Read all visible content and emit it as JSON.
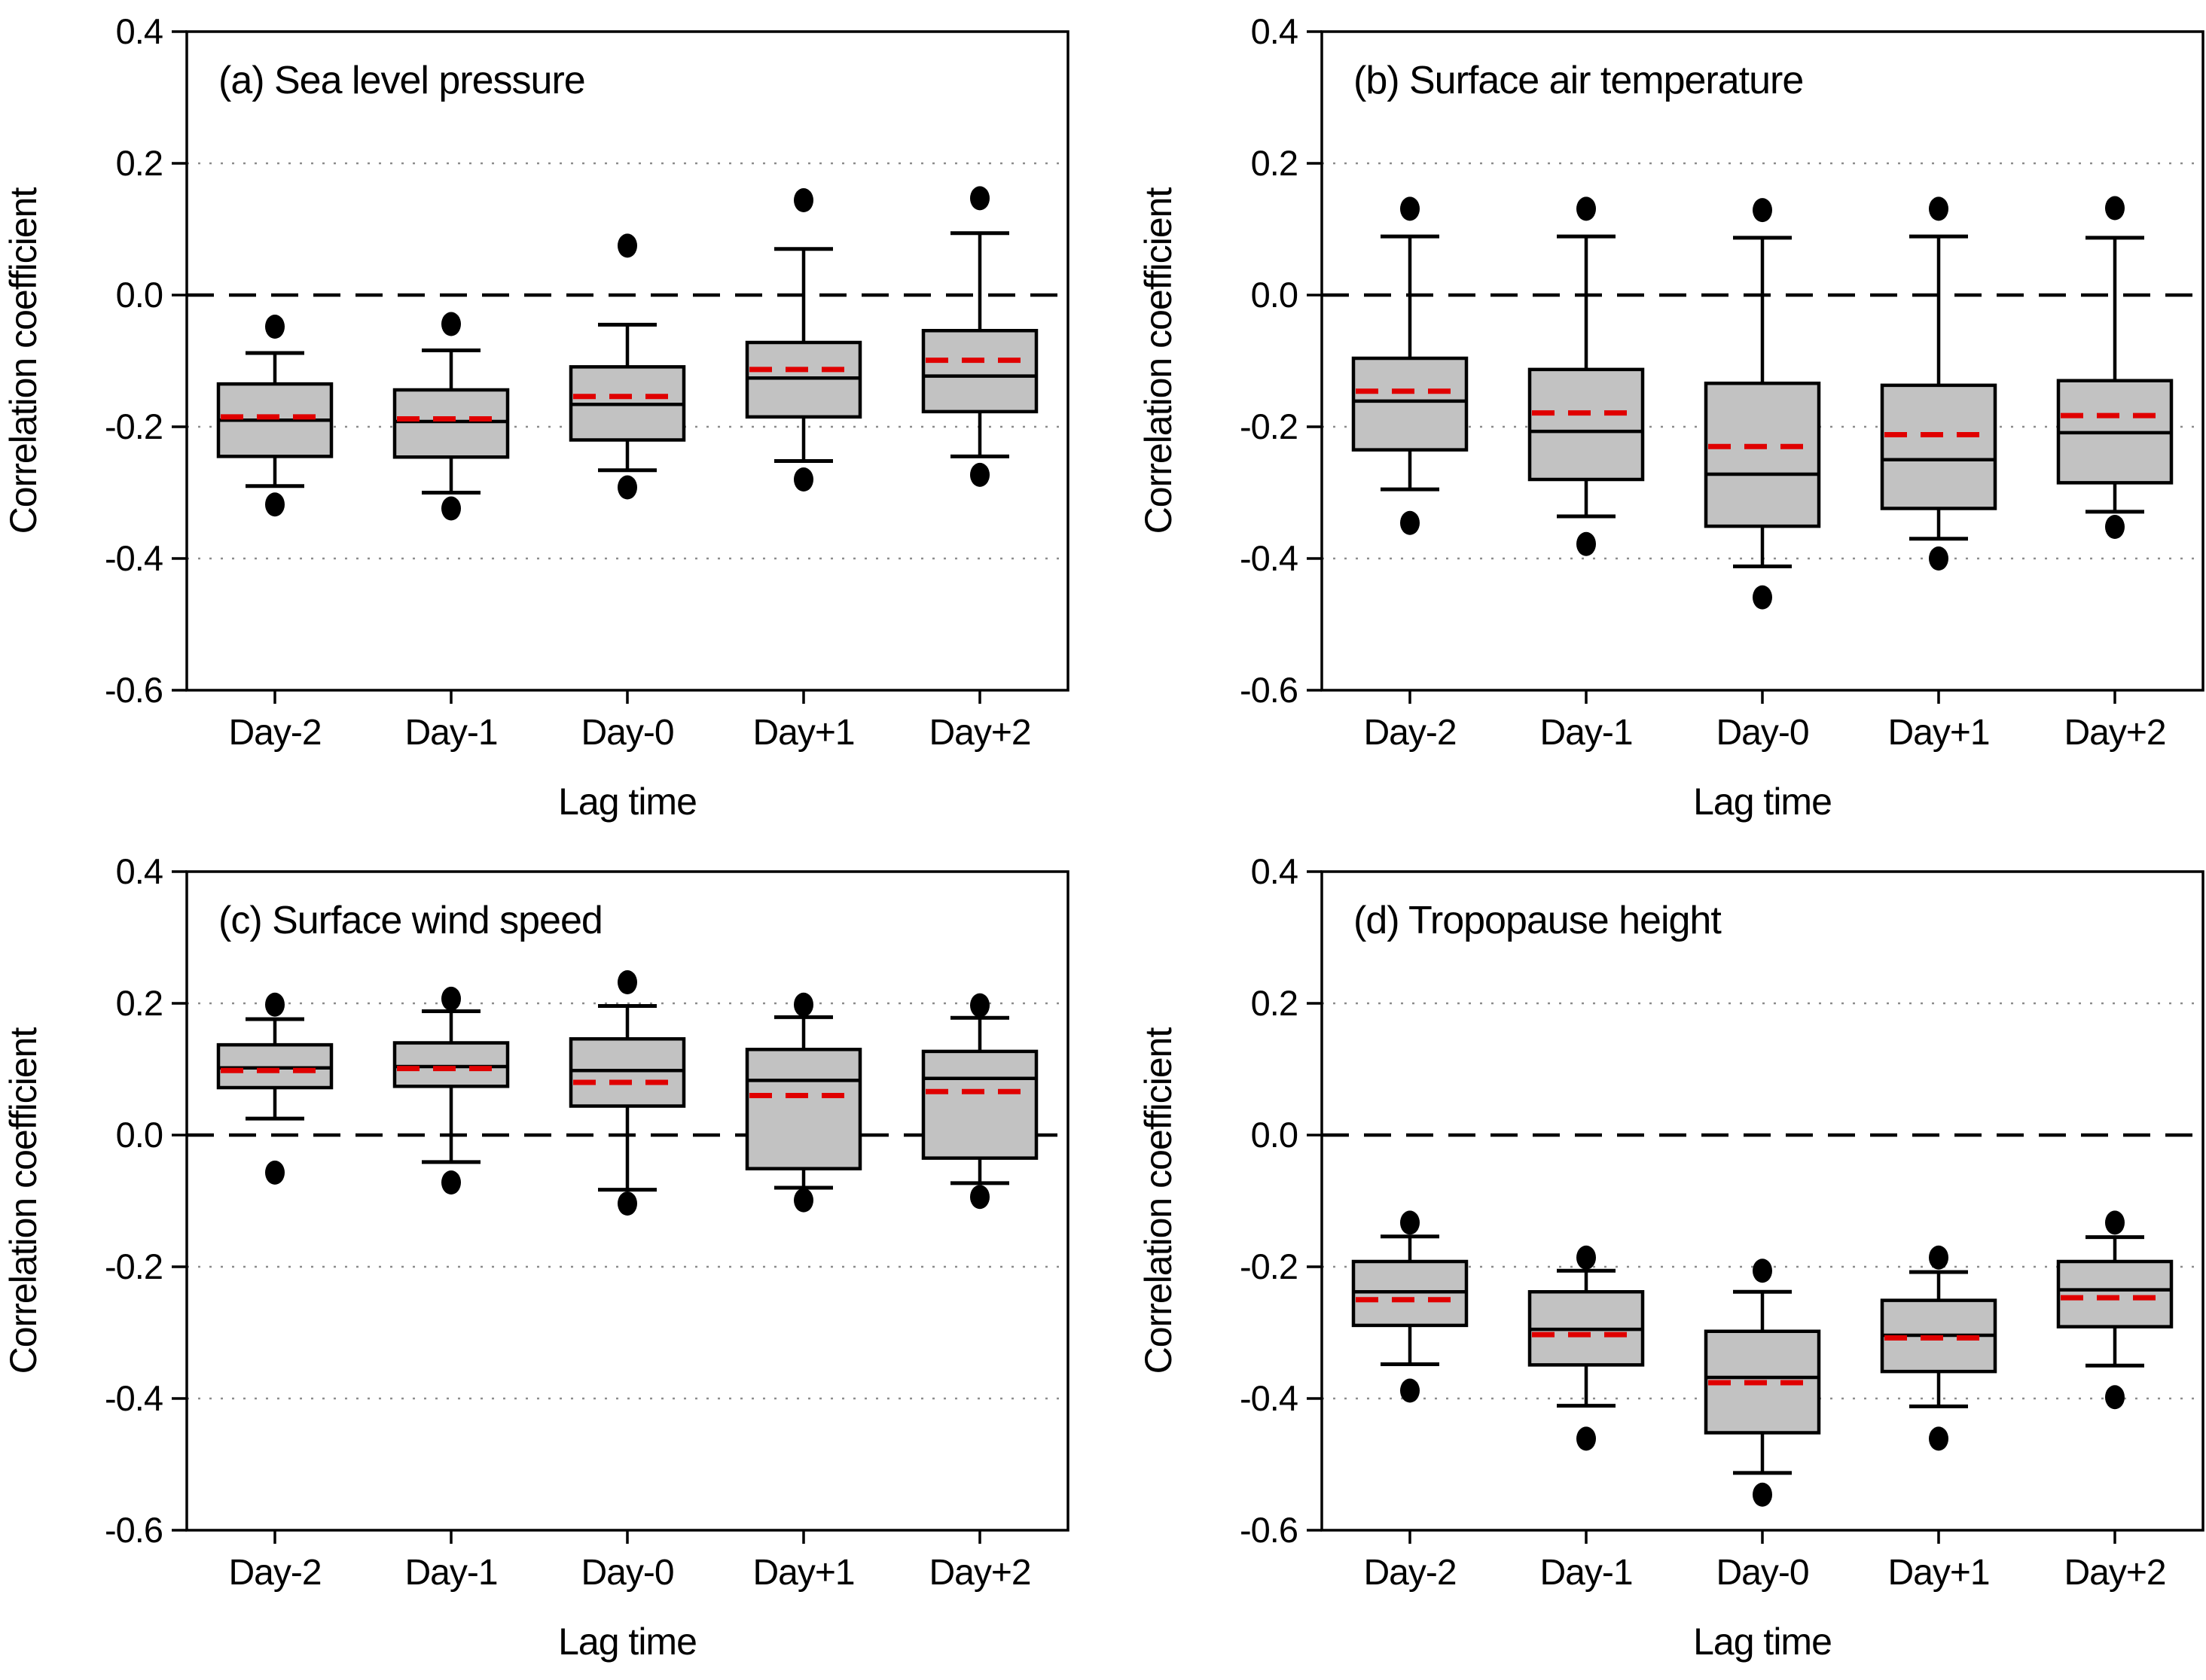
{
  "figure": {
    "background": "#ffffff",
    "box_fill": "#c2c2c2",
    "box_stroke": "#000000",
    "median_color": "#000000",
    "mean_line_color": "#e00000",
    "grid_color": "#8c8c8c",
    "zero_line_color": "#000000",
    "outlier_color": "#000000",
    "ylabel": "Correlation coefficient",
    "xlabel": "Lag time",
    "yticks": [
      "0.4",
      "0.2",
      "0.0",
      "-0.2",
      "-0.4",
      "-0.6"
    ],
    "ytick_values": [
      0.4,
      0.2,
      0.0,
      -0.2,
      -0.4,
      -0.6
    ],
    "gridline_values": [
      0.2,
      -0.2,
      -0.4
    ],
    "zero_line_value": 0.0,
    "ylim": [
      -0.6,
      0.4
    ],
    "categories": [
      "Day-2",
      "Day-1",
      "Day-0",
      "Day+1",
      "Day+2"
    ]
  },
  "chart_data": [
    {
      "id": "a",
      "type": "box",
      "title": "(a) Sea level pressure",
      "xlabel": "Lag time",
      "ylabel": "Correlation coefficient",
      "categories": [
        "Day-2",
        "Day-1",
        "Day-0",
        "Day+1",
        "Day+2"
      ],
      "ylim": [
        -0.6,
        0.4
      ],
      "boxes": [
        {
          "category": "Day-2",
          "whisker_low": -0.29,
          "q1": -0.245,
          "median": -0.19,
          "mean": -0.185,
          "q3": -0.135,
          "whisker_high": -0.088,
          "outliers_low": [
            -0.318
          ],
          "outliers_high": [
            -0.048
          ]
        },
        {
          "category": "Day-1",
          "whisker_low": -0.3,
          "q1": -0.246,
          "median": -0.192,
          "mean": -0.188,
          "q3": -0.144,
          "whisker_high": -0.084,
          "outliers_low": [
            -0.324
          ],
          "outliers_high": [
            -0.044
          ]
        },
        {
          "category": "Day-0",
          "whisker_low": -0.266,
          "q1": -0.22,
          "median": -0.166,
          "mean": -0.154,
          "q3": -0.109,
          "whisker_high": -0.045,
          "outliers_low": [
            -0.292
          ],
          "outliers_high": [
            0.075
          ]
        },
        {
          "category": "Day+1",
          "whisker_low": -0.252,
          "q1": -0.185,
          "median": -0.126,
          "mean": -0.113,
          "q3": -0.072,
          "whisker_high": 0.07,
          "outliers_low": [
            -0.28
          ],
          "outliers_high": [
            0.144
          ]
        },
        {
          "category": "Day+2",
          "whisker_low": -0.245,
          "q1": -0.177,
          "median": -0.123,
          "mean": -0.099,
          "q3": -0.054,
          "whisker_high": 0.094,
          "outliers_low": [
            -0.273
          ],
          "outliers_high": [
            0.147
          ]
        }
      ]
    },
    {
      "id": "b",
      "type": "box",
      "title": "(b) Surface air temperature",
      "xlabel": "Lag time",
      "ylabel": "Correlation coefficient",
      "categories": [
        "Day-2",
        "Day-1",
        "Day-0",
        "Day+1",
        "Day+2"
      ],
      "ylim": [
        -0.6,
        0.4
      ],
      "boxes": [
        {
          "category": "Day-2",
          "whisker_low": -0.295,
          "q1": -0.235,
          "median": -0.161,
          "mean": -0.146,
          "q3": -0.096,
          "whisker_high": 0.089,
          "outliers_low": [
            -0.346
          ],
          "outliers_high": [
            0.131
          ]
        },
        {
          "category": "Day-1",
          "whisker_low": -0.336,
          "q1": -0.28,
          "median": -0.207,
          "mean": -0.179,
          "q3": -0.113,
          "whisker_high": 0.089,
          "outliers_low": [
            -0.378
          ],
          "outliers_high": [
            0.131
          ]
        },
        {
          "category": "Day-0",
          "whisker_low": -0.412,
          "q1": -0.351,
          "median": -0.272,
          "mean": -0.23,
          "q3": -0.134,
          "whisker_high": 0.087,
          "outliers_low": [
            -0.459
          ],
          "outliers_high": [
            0.129
          ]
        },
        {
          "category": "Day+1",
          "whisker_low": -0.37,
          "q1": -0.324,
          "median": -0.25,
          "mean": -0.212,
          "q3": -0.137,
          "whisker_high": 0.089,
          "outliers_low": [
            -0.4
          ],
          "outliers_high": [
            0.131
          ]
        },
        {
          "category": "Day+2",
          "whisker_low": -0.329,
          "q1": -0.285,
          "median": -0.209,
          "mean": -0.183,
          "q3": -0.13,
          "whisker_high": 0.087,
          "outliers_low": [
            -0.352
          ],
          "outliers_high": [
            0.132
          ]
        }
      ]
    },
    {
      "id": "c",
      "type": "box",
      "title": "(c) Surface wind speed",
      "xlabel": "Lag time",
      "ylabel": "Correlation coefficient",
      "categories": [
        "Day-2",
        "Day-1",
        "Day-0",
        "Day+1",
        "Day+2"
      ],
      "ylim": [
        -0.6,
        0.4
      ],
      "boxes": [
        {
          "category": "Day-2",
          "whisker_low": 0.025,
          "q1": 0.072,
          "median": 0.102,
          "mean": 0.098,
          "q3": 0.137,
          "whisker_high": 0.176,
          "outliers_low": [
            -0.057
          ],
          "outliers_high": [
            0.198
          ]
        },
        {
          "category": "Day-1",
          "whisker_low": -0.041,
          "q1": 0.074,
          "median": 0.104,
          "mean": 0.101,
          "q3": 0.14,
          "whisker_high": 0.188,
          "outliers_low": [
            -0.072
          ],
          "outliers_high": [
            0.207
          ]
        },
        {
          "category": "Day-0",
          "whisker_low": -0.083,
          "q1": 0.044,
          "median": 0.098,
          "mean": 0.08,
          "q3": 0.146,
          "whisker_high": 0.196,
          "outliers_low": [
            -0.104
          ],
          "outliers_high": [
            0.232
          ]
        },
        {
          "category": "Day+1",
          "whisker_low": -0.08,
          "q1": -0.051,
          "median": 0.083,
          "mean": 0.06,
          "q3": 0.13,
          "whisker_high": 0.179,
          "outliers_low": [
            -0.099
          ],
          "outliers_high": [
            0.198
          ]
        },
        {
          "category": "Day+2",
          "whisker_low": -0.073,
          "q1": -0.035,
          "median": 0.086,
          "mean": 0.066,
          "q3": 0.127,
          "whisker_high": 0.178,
          "outliers_low": [
            -0.094
          ],
          "outliers_high": [
            0.197
          ]
        }
      ]
    },
    {
      "id": "d",
      "type": "box",
      "title": "(d) Tropopause height",
      "xlabel": "Lag time",
      "ylabel": "Correlation coefficient",
      "categories": [
        "Day-2",
        "Day-1",
        "Day-0",
        "Day+1",
        "Day+2"
      ],
      "ylim": [
        -0.6,
        0.4
      ],
      "boxes": [
        {
          "category": "Day-2",
          "whisker_low": -0.348,
          "q1": -0.289,
          "median": -0.238,
          "mean": -0.25,
          "q3": -0.192,
          "whisker_high": -0.154,
          "outliers_low": [
            -0.388
          ],
          "outliers_high": [
            -0.133
          ]
        },
        {
          "category": "Day-1",
          "whisker_low": -0.411,
          "q1": -0.349,
          "median": -0.295,
          "mean": -0.303,
          "q3": -0.238,
          "whisker_high": -0.206,
          "outliers_low": [
            -0.461
          ],
          "outliers_high": [
            -0.186
          ]
        },
        {
          "category": "Day-0",
          "whisker_low": -0.513,
          "q1": -0.452,
          "median": -0.368,
          "mean": -0.376,
          "q3": -0.298,
          "whisker_high": -0.238,
          "outliers_low": [
            -0.546
          ],
          "outliers_high": [
            -0.206
          ]
        },
        {
          "category": "Day+1",
          "whisker_low": -0.412,
          "q1": -0.359,
          "median": -0.304,
          "mean": -0.308,
          "q3": -0.251,
          "whisker_high": -0.208,
          "outliers_low": [
            -0.461
          ],
          "outliers_high": [
            -0.186
          ]
        },
        {
          "category": "Day+2",
          "whisker_low": -0.35,
          "q1": -0.291,
          "median": -0.235,
          "mean": -0.247,
          "q3": -0.192,
          "whisker_high": -0.155,
          "outliers_low": [
            -0.398
          ],
          "outliers_high": [
            -0.133
          ]
        }
      ]
    }
  ]
}
